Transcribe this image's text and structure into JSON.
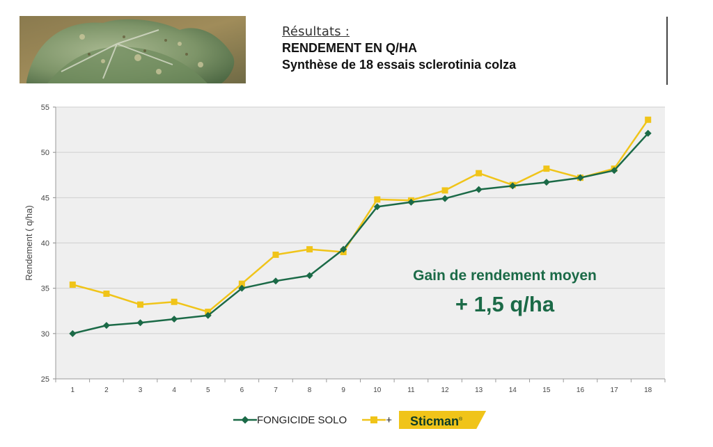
{
  "header": {
    "results_label": "Résultats :",
    "title": "RENDEMENT EN Q/HA",
    "subtitle": "Synthèse de 18 essais sclerotinia colza"
  },
  "annotation": {
    "line1": "Gain de rendement moyen",
    "line2": "+ 1,5 q/ha"
  },
  "legend": {
    "series1": "FONGICIDE SOLO",
    "series2_prefix": "+",
    "brand": "Sticman",
    "brand_mark": "®"
  },
  "colors": {
    "series1": "#1b6a47",
    "series2": "#f0c419",
    "plot_bg": "#efefef",
    "grid": "#cfcfcf"
  },
  "chart_data": {
    "type": "line",
    "x": [
      1,
      2,
      3,
      4,
      5,
      6,
      7,
      8,
      9,
      10,
      11,
      12,
      13,
      14,
      15,
      16,
      17,
      18
    ],
    "ylabel": "Rendement ( q/ha)",
    "ylim": [
      25,
      55
    ],
    "yticks": [
      25,
      30,
      35,
      40,
      45,
      50,
      55
    ],
    "grid": "horizontal",
    "legend_position": "bottom",
    "series": [
      {
        "name": "FONGICIDE SOLO",
        "marker": "diamond",
        "color": "#1b6a47",
        "values": [
          30.0,
          30.9,
          31.2,
          31.6,
          32.0,
          35.0,
          35.8,
          36.4,
          39.3,
          44.0,
          44.5,
          44.9,
          45.9,
          46.3,
          46.7,
          47.2,
          48.0,
          52.1
        ]
      },
      {
        "name": "+ Sticman",
        "marker": "square",
        "color": "#f0c419",
        "values": [
          35.4,
          34.4,
          33.2,
          33.5,
          32.4,
          35.5,
          38.7,
          39.3,
          39.0,
          44.8,
          44.7,
          45.8,
          47.7,
          46.4,
          48.2,
          47.2,
          48.2,
          53.6
        ]
      }
    ]
  }
}
